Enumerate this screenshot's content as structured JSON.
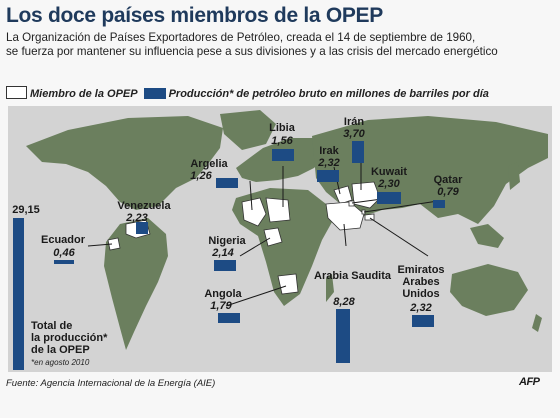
{
  "header": {
    "title": "Los doce países miembros de la OPEP",
    "subtitle_line1": "La Organización de Países Exportadores de Petróleo, creada el 14 de septiembre de 1960,",
    "subtitle_line2": "se fuerza por mantener su influencia pese a sus divisiones y a las crisis del mercado energético"
  },
  "legend": {
    "member_label": "Miembro de la OPEP",
    "production_label": "Producción* de petróleo bruto en millones de barriles por día",
    "member_color": "#ffffff",
    "production_color": "#1d4b84"
  },
  "map": {
    "land_color": "#6b7f5e",
    "sea_color": "#d3d3d3"
  },
  "countries": [
    {
      "name": "Libia",
      "value": "1,56"
    },
    {
      "name": "Irán",
      "value": "3,70"
    },
    {
      "name": "Irak",
      "value": "2,32"
    },
    {
      "name": "Argelia",
      "value": "1,26"
    },
    {
      "name": "Kuwait",
      "value": "2,30"
    },
    {
      "name": "Qatar",
      "value": "0,79"
    },
    {
      "name": "Venezuela",
      "value": "2,23"
    },
    {
      "name": "Ecuador",
      "value": "0,46"
    },
    {
      "name": "Nigeria",
      "value": "2,14"
    },
    {
      "name": "Angola",
      "value": "1,79"
    },
    {
      "name": "Arabia Saudita",
      "value": "8,28"
    },
    {
      "name": "Emiratos Arabes Unidos",
      "value": "2,32"
    }
  ],
  "total": {
    "value": "29,15",
    "label_line1": "Total de",
    "label_line2": "la producción*",
    "label_line3": "de la OPEP",
    "note": "*en agosto 2010"
  },
  "footer": {
    "source": "Fuente: Agencia Internacional de la Energía (AIE)",
    "logo": "AFP"
  }
}
